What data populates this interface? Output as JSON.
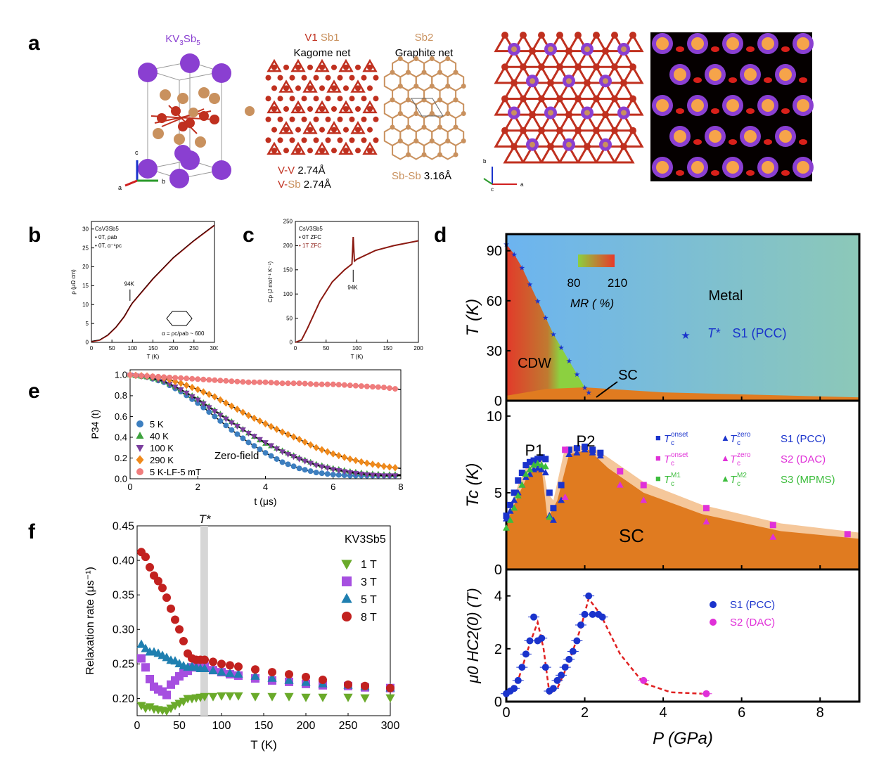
{
  "panel_labels": {
    "a": "a",
    "b": "b",
    "c": "c",
    "d": "d",
    "e": "e",
    "f": "f"
  },
  "panel_a": {
    "title_main": "KV",
    "title_sub1": "3",
    "title_main2": "Sb",
    "title_sub2": "5",
    "kagome_v1": "V1",
    "kagome_sb1": "Sb1",
    "kagome_name": "Kagome net",
    "graphite_sb2": "Sb2",
    "graphite_name": "Graphite net",
    "vv_label": "V-V",
    "vv_value": "2.74Å",
    "vsb_v": "V-",
    "vsb_sb": "Sb",
    "vsb_value": "2.74Å",
    "sbsb_label": "Sb-Sb",
    "sbsb_value": "3.16Å",
    "axis_c": "c",
    "axis_a": "a",
    "axis_b": "b",
    "axis2_b": "b",
    "axis2_c": "c",
    "axis2_a": "a",
    "colors": {
      "K": "#8a3fd1",
      "V": "#c0301f",
      "Sb": "#c9915e"
    }
  },
  "chart_data": [
    {
      "id": "b",
      "type": "line",
      "legend_title": "CsV3Sb5",
      "legend": [
        "0T, ρab",
        "0T, α⁻¹ρc"
      ],
      "xlabel": "T (K)",
      "ylabel": "ρ (μΩ cm)",
      "xlim": [
        0,
        300
      ],
      "ylim": [
        0,
        32
      ],
      "xticks": [
        "0",
        "50",
        "100",
        "150",
        "200",
        "250",
        "300"
      ],
      "yticks": [
        "0",
        "5",
        "10",
        "15",
        "20",
        "25",
        "30"
      ],
      "annotation": "94K",
      "ratio_label": "α = ρc/ρab ~ 600",
      "series": [
        {
          "name": "0T",
          "x": [
            0,
            20,
            40,
            60,
            80,
            94,
            100,
            150,
            200,
            250,
            300
          ],
          "y": [
            0.2,
            0.6,
            1.9,
            4.0,
            6.8,
            9.4,
            10.4,
            16.8,
            22.4,
            26.9,
            31
          ]
        }
      ]
    },
    {
      "id": "c",
      "type": "line",
      "legend_title": "CsV3Sb5",
      "legend": [
        "0T ZFC",
        "1T ZFC"
      ],
      "xlabel": "T (K)",
      "ylabel": "Cp (J mol⁻¹ K⁻¹)",
      "xlim": [
        0,
        200
      ],
      "ylim": [
        0,
        250
      ],
      "xticks": [
        "0",
        "50",
        "100",
        "150",
        "200"
      ],
      "yticks": [
        "0",
        "50",
        "100",
        "150",
        "200",
        "250"
      ],
      "annotation": "94K",
      "series": [
        {
          "name": "1T ZFC",
          "x": [
            0,
            10,
            20,
            40,
            60,
            80,
            92,
            94,
            96,
            100,
            130,
            160,
            200
          ],
          "y": [
            0,
            5,
            30,
            85,
            125,
            150,
            162,
            218,
            168,
            172,
            190,
            200,
            210
          ]
        }
      ]
    },
    {
      "id": "e",
      "type": "scatter",
      "xlabel": "t (μs)",
      "ylabel": "P34 (t)",
      "xlim": [
        0,
        8
      ],
      "ylim": [
        0,
        1.05
      ],
      "xticks": [
        "0",
        "2",
        "4",
        "6",
        "8"
      ],
      "yticks": [
        "0.0",
        "0.2",
        "0.4",
        "0.6",
        "0.8",
        "1.0"
      ],
      "annotation": "Zero-field",
      "series": [
        {
          "name": "5 K",
          "color": "#3d7fc0",
          "marker": "circle",
          "x": [
            0,
            0.5,
            1,
            1.5,
            2,
            2.5,
            3,
            3.5,
            4,
            4.5,
            5,
            5.5,
            6,
            6.5,
            7,
            7.5,
            8
          ],
          "y": [
            1,
            0.98,
            0.93,
            0.84,
            0.73,
            0.6,
            0.47,
            0.35,
            0.25,
            0.16,
            0.1,
            0.06,
            0.04,
            0.03,
            0.03,
            0.03,
            0.03
          ]
        },
        {
          "name": "40 K",
          "color": "#3ea33e",
          "marker": "triangle",
          "x": [
            0,
            0.5,
            1,
            1.5,
            2,
            2.5,
            3,
            3.5,
            4,
            4.5,
            5,
            5.5,
            6,
            6.5,
            7,
            7.5,
            8
          ],
          "y": [
            1,
            0.98,
            0.94,
            0.86,
            0.77,
            0.66,
            0.55,
            0.44,
            0.34,
            0.27,
            0.2,
            0.14,
            0.1,
            0.07,
            0.05,
            0.04,
            0.04
          ]
        },
        {
          "name": "100 K",
          "color": "#7b3f9e",
          "marker": "triangle-down",
          "x": [
            0,
            0.5,
            1,
            1.5,
            2,
            2.5,
            3,
            3.5,
            4,
            4.5,
            5,
            5.5,
            6,
            6.5,
            7,
            7.5,
            8
          ],
          "y": [
            1,
            0.98,
            0.94,
            0.86,
            0.76,
            0.65,
            0.54,
            0.44,
            0.35,
            0.26,
            0.19,
            0.13,
            0.09,
            0.06,
            0.04,
            0.03,
            0.03
          ]
        },
        {
          "name": "290 K",
          "color": "#f08a1c",
          "marker": "diamond",
          "x": [
            0,
            0.5,
            1,
            1.5,
            2,
            2.5,
            3,
            3.5,
            4,
            4.5,
            5,
            5.5,
            6,
            6.5,
            7,
            7.5,
            8
          ],
          "y": [
            1,
            0.99,
            0.97,
            0.92,
            0.86,
            0.79,
            0.7,
            0.61,
            0.53,
            0.45,
            0.38,
            0.3,
            0.24,
            0.19,
            0.15,
            0.12,
            0.1
          ]
        },
        {
          "name": "5 K-LF-5 mT",
          "color": "#f07c7c",
          "marker": "circle",
          "x": [
            0,
            0.5,
            1,
            1.5,
            2,
            2.5,
            3,
            3.5,
            4,
            4.5,
            5,
            5.5,
            6,
            6.5,
            7,
            7.5,
            8
          ],
          "y": [
            1,
            0.99,
            0.98,
            0.97,
            0.96,
            0.95,
            0.94,
            0.93,
            0.93,
            0.92,
            0.92,
            0.91,
            0.91,
            0.9,
            0.89,
            0.88,
            0.86
          ]
        }
      ]
    },
    {
      "id": "f",
      "type": "scatter",
      "xlabel": "T (K)",
      "ylabel": "Relaxation rate (μs⁻¹)",
      "xlim": [
        0,
        300
      ],
      "ylim": [
        0.175,
        0.45
      ],
      "xticks": [
        "0",
        "50",
        "100",
        "150",
        "200",
        "250",
        "300"
      ],
      "yticks": [
        "0.20",
        "0.25",
        "0.30",
        "0.35",
        "0.40",
        "0.45"
      ],
      "legend_title": "KV3Sb5",
      "tstar_label": "T*",
      "tstar": 80,
      "series": [
        {
          "name": "1 T",
          "color": "#6aaa2a",
          "marker": "triangle-down",
          "x": [
            5,
            10,
            15,
            20,
            25,
            30,
            35,
            40,
            45,
            50,
            55,
            60,
            65,
            70,
            75,
            80,
            90,
            100,
            110,
            120,
            140,
            160,
            180,
            200,
            220,
            250,
            270,
            300
          ],
          "y": [
            0.19,
            0.186,
            0.188,
            0.185,
            0.184,
            0.183,
            0.182,
            0.186,
            0.19,
            0.193,
            0.196,
            0.2,
            0.2,
            0.201,
            0.202,
            0.203,
            0.203,
            0.204,
            0.204,
            0.204,
            0.203,
            0.203,
            0.203,
            0.202,
            0.202,
            0.202,
            0.201,
            0.201
          ]
        },
        {
          "name": "3 T",
          "color": "#a64fe0",
          "marker": "square",
          "x": [
            5,
            10,
            15,
            20,
            25,
            30,
            35,
            40,
            45,
            50,
            55,
            60,
            65,
            70,
            75,
            80,
            90,
            100,
            110,
            120,
            140,
            160,
            180,
            200,
            220,
            250,
            270,
            300
          ],
          "y": [
            0.258,
            0.245,
            0.228,
            0.217,
            0.213,
            0.21,
            0.205,
            0.22,
            0.226,
            0.232,
            0.237,
            0.24,
            0.245,
            0.25,
            0.25,
            0.246,
            0.241,
            0.238,
            0.235,
            0.233,
            0.229,
            0.226,
            0.224,
            0.221,
            0.219,
            0.218,
            0.216,
            0.215
          ]
        },
        {
          "name": "5 T",
          "color": "#1f7fb0",
          "marker": "triangle",
          "x": [
            5,
            10,
            15,
            20,
            25,
            30,
            35,
            40,
            45,
            50,
            55,
            60,
            65,
            70,
            75,
            80,
            90,
            100,
            110,
            120,
            140,
            160,
            180,
            200,
            220,
            250,
            270,
            300
          ],
          "y": [
            0.278,
            0.272,
            0.267,
            0.267,
            0.265,
            0.262,
            0.259,
            0.255,
            0.254,
            0.25,
            0.247,
            0.245,
            0.246,
            0.245,
            0.243,
            0.243,
            0.24,
            0.238,
            0.236,
            0.235,
            0.232,
            0.229,
            0.226,
            0.223,
            0.221,
            0.219,
            0.217,
            0.215
          ]
        },
        {
          "name": "8 T",
          "color": "#c2211f",
          "marker": "circle",
          "x": [
            5,
            10,
            15,
            20,
            25,
            30,
            35,
            40,
            45,
            50,
            55,
            60,
            65,
            70,
            75,
            80,
            90,
            100,
            110,
            120,
            140,
            160,
            180,
            200,
            220,
            250,
            270,
            300
          ],
          "y": [
            0.412,
            0.405,
            0.39,
            0.378,
            0.37,
            0.36,
            0.346,
            0.33,
            0.314,
            0.3,
            0.283,
            0.265,
            0.258,
            0.256,
            0.256,
            0.256,
            0.253,
            0.25,
            0.248,
            0.246,
            0.242,
            0.238,
            0.235,
            0.231,
            0.227,
            0.22,
            0.218,
            0.215
          ]
        }
      ]
    },
    {
      "id": "d_top",
      "type": "heatmap",
      "ylabel": "T (K)",
      "xlim": [
        0,
        9
      ],
      "ylim": [
        0,
        100
      ],
      "yticks": [
        "0",
        "30",
        "60",
        "90"
      ],
      "colorbar_min": "80",
      "colorbar_max": "210",
      "colorbar_label": "MR ( %)",
      "metal_label": "Metal",
      "cdw_label": "CDW",
      "sc_label": "SC",
      "legend_symbol": "★",
      "legend_tstar": "T*",
      "legend_name": "S1 (PCC)",
      "tstar_series": {
        "x": [
          0,
          0.2,
          0.4,
          0.6,
          0.8,
          1.0,
          1.2,
          1.4,
          1.6,
          1.8,
          2.0,
          2.1
        ],
        "y": [
          94,
          88,
          80,
          70,
          60,
          50,
          40,
          32,
          24,
          16,
          8,
          5
        ]
      }
    },
    {
      "id": "d_mid",
      "type": "scatter",
      "ylabel": "Tc (K)",
      "xlim": [
        0,
        9
      ],
      "ylim": [
        0,
        11
      ],
      "yticks": [
        "0",
        "5",
        "10"
      ],
      "p1_label": "P1",
      "p2_label": "P2",
      "sc_label": "SC",
      "legend": [
        {
          "sym1": "■",
          "t1": "T",
          "s1": "c",
          "sup1": "onset",
          "sym2": "▲",
          "t2": "T",
          "s2": "c",
          "sup2": "zero",
          "name": "S1 (PCC)",
          "color": "#1a33cc"
        },
        {
          "sym1": "■",
          "t1": "T",
          "s1": "c",
          "sup1": "onset",
          "sym2": "▲",
          "t2": "T",
          "s2": "c",
          "sup2": "zero",
          "name": "S2 (DAC)",
          "color": "#e030d8"
        },
        {
          "sym1": "■",
          "t1": "T",
          "s1": "c",
          "sup1": "M1",
          "sym2": "▲",
          "t2": "T",
          "s2": "c",
          "sup2": "M2",
          "name": "S3 (MPMS)",
          "color": "#3dbd3d"
        }
      ],
      "series": [
        {
          "name": "S1 onset",
          "color": "#1a33cc",
          "x": [
            0,
            0.1,
            0.2,
            0.3,
            0.4,
            0.5,
            0.6,
            0.7,
            0.8,
            0.9,
            1.0,
            1.1,
            1.2,
            1.4,
            1.6,
            1.8,
            2.0,
            2.2,
            2.4
          ],
          "y": [
            3.5,
            4.2,
            5,
            5.8,
            6.3,
            6.8,
            7,
            7.1,
            7.2,
            7.3,
            7.2,
            5,
            4,
            5.5,
            7.8,
            7.9,
            8,
            7.8,
            7.6
          ]
        },
        {
          "name": "S1 zero",
          "color": "#1a33cc",
          "x": [
            0,
            0.1,
            0.2,
            0.3,
            0.4,
            0.5,
            0.6,
            0.7,
            0.8,
            0.9,
            1.0,
            1.1,
            1.2,
            1.4,
            1.6,
            1.8,
            2.0,
            2.2,
            2.4
          ],
          "y": [
            3.3,
            3.8,
            4.5,
            5,
            5.5,
            6,
            6.2,
            6.5,
            6.6,
            6.5,
            6.3,
            3.5,
            3.2,
            4.5,
            7.5,
            7.6,
            7.8,
            7.6,
            7.4
          ]
        },
        {
          "name": "S2 onset",
          "color": "#e030d8",
          "x": [
            1.5,
            2.9,
            3.5,
            5.1,
            6.8,
            8.7
          ],
          "y": [
            7.8,
            6.4,
            5.5,
            4,
            2.9,
            2.3
          ]
        },
        {
          "name": "S2 zero",
          "color": "#e030d8",
          "x": [
            1.5,
            2.9,
            3.5,
            5.1,
            6.8
          ],
          "y": [
            4.7,
            5.5,
            4.5,
            3.1,
            2.1
          ]
        },
        {
          "name": "S3",
          "color": "#3dbd3d",
          "x": [
            0,
            0.1,
            0.2,
            0.3,
            0.4,
            0.5,
            0.6,
            0.7,
            0.8,
            0.9,
            1.0,
            1.1
          ],
          "y": [
            2.7,
            3.2,
            4,
            4.8,
            5.5,
            6.2,
            6.5,
            6.8,
            6.9,
            6.8,
            6.7,
            3.4
          ]
        }
      ]
    },
    {
      "id": "d_bot",
      "type": "scatter",
      "ylabel": "μ0 HC2(0) (T)",
      "xlabel": "P (GPa)",
      "xlim": [
        0,
        9
      ],
      "ylim": [
        0,
        5
      ],
      "xticks": [
        "0",
        "2",
        "4",
        "6",
        "8"
      ],
      "yticks": [
        "0",
        "2",
        "4"
      ],
      "legend": [
        {
          "name": "S1 (PCC)",
          "color": "#1a33cc"
        },
        {
          "name": "S2 (DAC)",
          "color": "#e030d8"
        }
      ],
      "series": [
        {
          "name": "S1 (PCC)",
          "color": "#1a33cc",
          "x": [
            0,
            0.1,
            0.2,
            0.3,
            0.4,
            0.5,
            0.6,
            0.7,
            0.8,
            0.9,
            1.0,
            1.1,
            1.2,
            1.3,
            1.4,
            1.5,
            1.6,
            1.7,
            1.8,
            1.9,
            2.0,
            2.1,
            2.2,
            2.35,
            2.45
          ],
          "y": [
            0.3,
            0.4,
            0.5,
            0.8,
            1.3,
            1.8,
            2.3,
            3.2,
            2.3,
            2.4,
            1.3,
            0.4,
            0.5,
            0.8,
            1.0,
            1.3,
            1.6,
            1.9,
            2.3,
            2.9,
            3.3,
            4.0,
            3.3,
            3.3,
            3.2
          ]
        },
        {
          "name": "S2 (DAC)",
          "color": "#e030d8",
          "x": [
            3.5,
            5.1
          ],
          "y": [
            0.8,
            0.3
          ]
        }
      ]
    }
  ]
}
